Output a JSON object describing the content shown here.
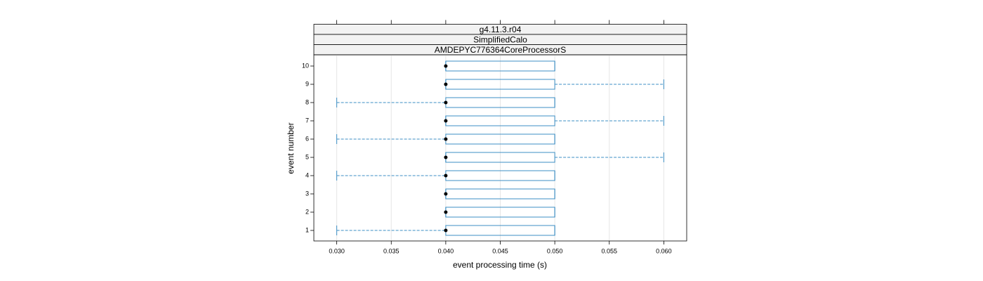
{
  "chart_data": {
    "type": "box",
    "strips": [
      "g4.11.3.r04",
      "SimplifiedCalo",
      "AMDEPYC776364CoreProcessorS"
    ],
    "xlabel": "event processing time (s)",
    "ylabel": "event number",
    "categories": [
      "1",
      "2",
      "3",
      "4",
      "5",
      "6",
      "7",
      "8",
      "9",
      "10"
    ],
    "min": [
      0.03,
      0.04,
      0.04,
      0.03,
      0.04,
      0.03,
      0.04,
      0.03,
      0.04,
      0.04
    ],
    "q1": [
      0.04,
      0.04,
      0.04,
      0.04,
      0.04,
      0.04,
      0.04,
      0.04,
      0.04,
      0.04
    ],
    "median": [
      0.04,
      0.04,
      0.04,
      0.04,
      0.04,
      0.04,
      0.04,
      0.04,
      0.04,
      0.04
    ],
    "q3": [
      0.05,
      0.05,
      0.05,
      0.05,
      0.05,
      0.05,
      0.05,
      0.05,
      0.05,
      0.05
    ],
    "max": [
      0.05,
      0.05,
      0.05,
      0.05,
      0.06,
      0.05,
      0.06,
      0.05,
      0.06,
      0.05
    ],
    "color": "#3d8fc4",
    "median_color": "#000000",
    "xlim": [
      0.0279,
      0.0621
    ],
    "xticks": [
      {
        "value": 0.03,
        "label": "0.030"
      },
      0.035,
      {
        "value": 0.04,
        "label": "0.040"
      },
      0.045,
      {
        "value": 0.05,
        "label": "0.050"
      },
      0.055,
      {
        "value": 0.06,
        "label": "0.060"
      }
    ],
    "grid": true
  }
}
